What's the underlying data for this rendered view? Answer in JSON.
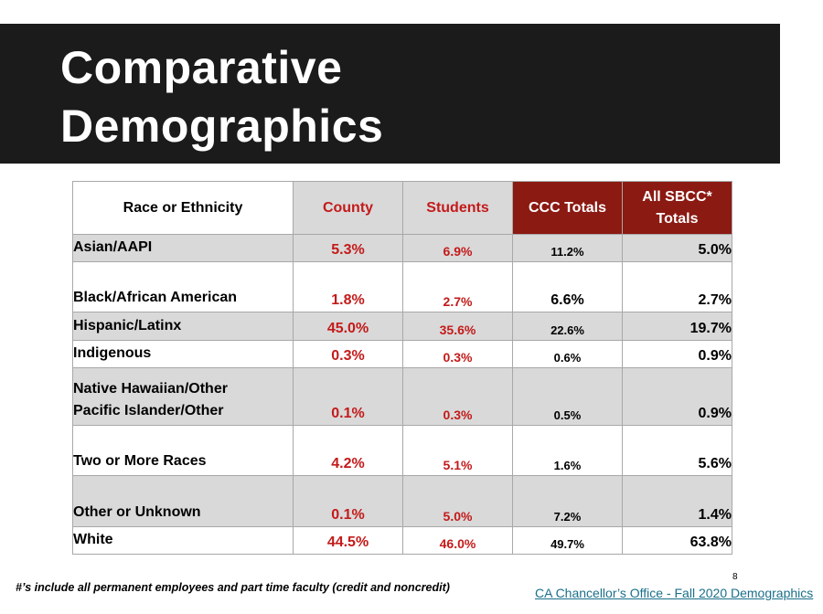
{
  "slide": {
    "title_line1": "Comparative",
    "title_line2": "Demographics",
    "footnote": "#’s include all permanent employees and part time faculty (credit and noncredit)",
    "page_number": "8",
    "source_link": "CA Chancellor’s Office - Fall 2020 Demographics"
  },
  "table": {
    "headers": {
      "race": "Race or Ethnicity",
      "county": "County",
      "students": "Students",
      "ccc": "CCC Totals",
      "sbcc_line1": "All SBCC*",
      "sbcc_line2": "Totals"
    },
    "rows": [
      {
        "race1": "Asian/AAPI",
        "race2": "",
        "county": "5.3%",
        "students": "6.9%",
        "ccc": "11.2%",
        "sbcc": "5.0%"
      },
      {
        "race1": "Black/African American",
        "race2": "",
        "county": "1.8%",
        "students": "2.7%",
        "ccc": "6.6%",
        "sbcc": "2.7%"
      },
      {
        "race1": "Hispanic/Latinx",
        "race2": "",
        "county": "45.0%",
        "students": "35.6%",
        "ccc": "22.6%",
        "sbcc": "19.7%"
      },
      {
        "race1": "Indigenous",
        "race2": "",
        "county": "0.3%",
        "students": "0.3%",
        "ccc": "0.6%",
        "sbcc": "0.9%"
      },
      {
        "race1": "Native Hawaiian/Other",
        "race2": "Pacific Islander/Other",
        "county": "0.1%",
        "students": "0.3%",
        "ccc": "0.5%",
        "sbcc": "0.9%"
      },
      {
        "race1": "Two or More Races",
        "race2": "",
        "county": "4.2%",
        "students": "5.1%",
        "ccc": "1.6%",
        "sbcc": "5.6%"
      },
      {
        "race1": "Other or Unknown",
        "race2": "",
        "county": "0.1%",
        "students": "5.0%",
        "ccc": "7.2%",
        "sbcc": "1.4%"
      },
      {
        "race1": "White",
        "race2": "",
        "county": "44.5%",
        "students": "46.0%",
        "ccc": "49.7%",
        "sbcc": "63.8%"
      }
    ]
  },
  "colors": {
    "title_bar": "#1b1b1b",
    "header_dark_red": "#8b1a12",
    "value_red": "#c41a1a",
    "row_grey": "#d9d9d9",
    "link_teal": "#1a6f8a"
  }
}
